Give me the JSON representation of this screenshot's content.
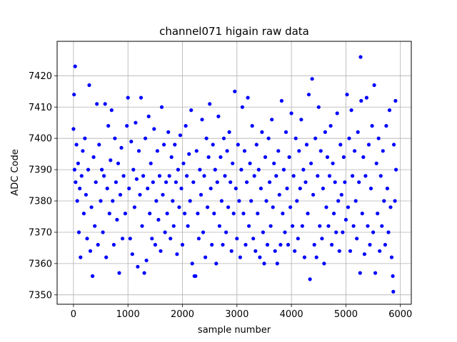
{
  "chart_data": {
    "type": "scatter",
    "title": "channel071 higain raw data",
    "xlabel": "sample number",
    "ylabel": "ADC Code",
    "xlim": [
      -300,
      6200
    ],
    "ylim": [
      7347,
      7431
    ],
    "xticks": [
      0,
      1000,
      2000,
      3000,
      4000,
      5000,
      6000
    ],
    "yticks": [
      7350,
      7360,
      7370,
      7380,
      7390,
      7400,
      7410,
      7420
    ],
    "grid": true,
    "marker_color": "#0000ff",
    "series": [
      {
        "points": [
          [
            0,
            7403
          ],
          [
            10,
            7414
          ],
          [
            20,
            7390
          ],
          [
            30,
            7423
          ],
          [
            40,
            7386
          ],
          [
            55,
            7398
          ],
          [
            70,
            7380
          ],
          [
            85,
            7392
          ],
          [
            100,
            7370
          ],
          [
            115,
            7384
          ],
          [
            130,
            7362
          ],
          [
            150,
            7388
          ],
          [
            170,
            7396
          ],
          [
            190,
            7376
          ],
          [
            210,
            7400
          ],
          [
            230,
            7382
          ],
          [
            250,
            7368
          ],
          [
            270,
            7390
          ],
          [
            290,
            7417
          ],
          [
            310,
            7364
          ],
          [
            330,
            7378
          ],
          [
            350,
            7356
          ],
          [
            370,
            7394
          ],
          [
            390,
            7372
          ],
          [
            410,
            7386
          ],
          [
            430,
            7411
          ],
          [
            450,
            7366
          ],
          [
            470,
            7398
          ],
          [
            500,
            7380
          ],
          [
            520,
            7390
          ],
          [
            540,
            7370
          ],
          [
            560,
            7388
          ],
          [
            580,
            7411
          ],
          [
            600,
            7362
          ],
          [
            620,
            7384
          ],
          [
            640,
            7404
          ],
          [
            660,
            7376
          ],
          [
            680,
            7393
          ],
          [
            700,
            7409
          ],
          [
            720,
            7380
          ],
          [
            740,
            7366
          ],
          [
            760,
            7400
          ],
          [
            780,
            7386
          ],
          [
            800,
            7374
          ],
          [
            820,
            7392
          ],
          [
            840,
            7357
          ],
          [
            860,
            7382
          ],
          [
            880,
            7397
          ],
          [
            900,
            7368
          ],
          [
            920,
            7388
          ],
          [
            950,
            7376
          ],
          [
            980,
            7404
          ],
          [
            1000,
            7413
          ],
          [
            1020,
            7384
          ],
          [
            1040,
            7368
          ],
          [
            1060,
            7399
          ],
          [
            1080,
            7363
          ],
          [
            1100,
            7390
          ],
          [
            1120,
            7378
          ],
          [
            1140,
            7405
          ],
          [
            1160,
            7387
          ],
          [
            1180,
            7359
          ],
          [
            1200,
            7396
          ],
          [
            1220,
            7382
          ],
          [
            1240,
            7413
          ],
          [
            1260,
            7372
          ],
          [
            1280,
            7388
          ],
          [
            1300,
            7357
          ],
          [
            1320,
            7400
          ],
          [
            1340,
            7361
          ],
          [
            1360,
            7384
          ],
          [
            1380,
            7407
          ],
          [
            1400,
            7376
          ],
          [
            1420,
            7392
          ],
          [
            1440,
            7368
          ],
          [
            1460,
            7386
          ],
          [
            1480,
            7403
          ],
          [
            1500,
            7366
          ],
          [
            1520,
            7380
          ],
          [
            1540,
            7396
          ],
          [
            1560,
            7374
          ],
          [
            1580,
            7388
          ],
          [
            1600,
            7364
          ],
          [
            1620,
            7410
          ],
          [
            1640,
            7382
          ],
          [
            1660,
            7398
          ],
          [
            1680,
            7370
          ],
          [
            1700,
            7386
          ],
          [
            1720,
            7376
          ],
          [
            1740,
            7402
          ],
          [
            1760,
            7388
          ],
          [
            1780,
            7368
          ],
          [
            1800,
            7394
          ],
          [
            1820,
            7380
          ],
          [
            1840,
            7372
          ],
          [
            1860,
            7398
          ],
          [
            1880,
            7386
          ],
          [
            1900,
            7363
          ],
          [
            1920,
            7390
          ],
          [
            1940,
            7378
          ],
          [
            1960,
            7401
          ],
          [
            1980,
            7384
          ],
          [
            2000,
            7366
          ],
          [
            2020,
            7392
          ],
          [
            2040,
            7376
          ],
          [
            2060,
            7404
          ],
          [
            2080,
            7388
          ],
          [
            2100,
            7372
          ],
          [
            2120,
            7395
          ],
          [
            2140,
            7380
          ],
          [
            2160,
            7409
          ],
          [
            2180,
            7360
          ],
          [
            2200,
            7386
          ],
          [
            2220,
            7356
          ],
          [
            2240,
            7356
          ],
          [
            2260,
            7396
          ],
          [
            2280,
            7376
          ],
          [
            2300,
            7368
          ],
          [
            2320,
            7390
          ],
          [
            2340,
            7382
          ],
          [
            2360,
            7406
          ],
          [
            2380,
            7370
          ],
          [
            2400,
            7388
          ],
          [
            2420,
            7362
          ],
          [
            2440,
            7400
          ],
          [
            2460,
            7378
          ],
          [
            2480,
            7394
          ],
          [
            2500,
            7411
          ],
          [
            2520,
            7384
          ],
          [
            2540,
            7366
          ],
          [
            2560,
            7398
          ],
          [
            2580,
            7376
          ],
          [
            2600,
            7390
          ],
          [
            2620,
            7360
          ],
          [
            2640,
            7386
          ],
          [
            2660,
            7407
          ],
          [
            2680,
            7372
          ],
          [
            2700,
            7394
          ],
          [
            2720,
            7380
          ],
          [
            2740,
            7366
          ],
          [
            2760,
            7400
          ],
          [
            2780,
            7388
          ],
          [
            2800,
            7370
          ],
          [
            2820,
            7396
          ],
          [
            2840,
            7378
          ],
          [
            2860,
            7402
          ],
          [
            2880,
            7386
          ],
          [
            2900,
            7364
          ],
          [
            2920,
            7392
          ],
          [
            2940,
            7376
          ],
          [
            2960,
            7415
          ],
          [
            2980,
            7384
          ],
          [
            3000,
            7368
          ],
          [
            3020,
            7398
          ],
          [
            3040,
            7380
          ],
          [
            3060,
            7362
          ],
          [
            3080,
            7390
          ],
          [
            3100,
            7410
          ],
          [
            3120,
            7376
          ],
          [
            3140,
            7396
          ],
          [
            3160,
            7366
          ],
          [
            3180,
            7386
          ],
          [
            3200,
            7413
          ],
          [
            3220,
            7372
          ],
          [
            3240,
            7392
          ],
          [
            3260,
            7380
          ],
          [
            3280,
            7404
          ],
          [
            3300,
            7368
          ],
          [
            3320,
            7388
          ],
          [
            3340,
            7364
          ],
          [
            3360,
            7398
          ],
          [
            3380,
            7376
          ],
          [
            3400,
            7390
          ],
          [
            3420,
            7362
          ],
          [
            3440,
            7384
          ],
          [
            3460,
            7402
          ],
          [
            3480,
            7370
          ],
          [
            3500,
            7360
          ],
          [
            3520,
            7394
          ],
          [
            3540,
            7380
          ],
          [
            3560,
            7366
          ],
          [
            3580,
            7400
          ],
          [
            3600,
            7386
          ],
          [
            3620,
            7372
          ],
          [
            3640,
            7406
          ],
          [
            3660,
            7378
          ],
          [
            3680,
            7392
          ],
          [
            3700,
            7364
          ],
          [
            3720,
            7388
          ],
          [
            3740,
            7360
          ],
          [
            3760,
            7396
          ],
          [
            3780,
            7382
          ],
          [
            3800,
            7366
          ],
          [
            3820,
            7412
          ],
          [
            3840,
            7376
          ],
          [
            3860,
            7390
          ],
          [
            3880,
            7370
          ],
          [
            3900,
            7402
          ],
          [
            3920,
            7384
          ],
          [
            3940,
            7366
          ],
          [
            3960,
            7394
          ],
          [
            3980,
            7378
          ],
          [
            4000,
            7408
          ],
          [
            4020,
            7372
          ],
          [
            4040,
            7388
          ],
          [
            4060,
            7364
          ],
          [
            4080,
            7400
          ],
          [
            4100,
            7380
          ],
          [
            4120,
            7368
          ],
          [
            4140,
            7396
          ],
          [
            4160,
            7384
          ],
          [
            4180,
            7406
          ],
          [
            4200,
            7372
          ],
          [
            4220,
            7390
          ],
          [
            4240,
            7362
          ],
          [
            4260,
            7386
          ],
          [
            4280,
            7398
          ],
          [
            4300,
            7376
          ],
          [
            4320,
            7414
          ],
          [
            4340,
            7355
          ],
          [
            4360,
            7392
          ],
          [
            4380,
            7419
          ],
          [
            4400,
            7382
          ],
          [
            4420,
            7366
          ],
          [
            4440,
            7400
          ],
          [
            4460,
            7362
          ],
          [
            4480,
            7388
          ],
          [
            4500,
            7410
          ],
          [
            4520,
            7372
          ],
          [
            4540,
            7396
          ],
          [
            4560,
            7368
          ],
          [
            4580,
            7384
          ],
          [
            4600,
            7360
          ],
          [
            4620,
            7402
          ],
          [
            4640,
            7378
          ],
          [
            4660,
            7394
          ],
          [
            4680,
            7372
          ],
          [
            4700,
            7388
          ],
          [
            4720,
            7404
          ],
          [
            4740,
            7366
          ],
          [
            4760,
            7392
          ],
          [
            4780,
            7376
          ],
          [
            4800,
            7386
          ],
          [
            4820,
            7370
          ],
          [
            4840,
            7408
          ],
          [
            4860,
            7380
          ],
          [
            4880,
            7364
          ],
          [
            4900,
            7398
          ],
          [
            4920,
            7382
          ],
          [
            4940,
            7370
          ],
          [
            4960,
            7394
          ],
          [
            4980,
            7386
          ],
          [
            5000,
            7374
          ],
          [
            5020,
            7414
          ],
          [
            5040,
            7378
          ],
          [
            5060,
            7400
          ],
          [
            5080,
            7364
          ],
          [
            5100,
            7409
          ],
          [
            5120,
            7388
          ],
          [
            5140,
            7372
          ],
          [
            5160,
            7396
          ],
          [
            5180,
            7380
          ],
          [
            5200,
            7368
          ],
          [
            5220,
            7402
          ],
          [
            5240,
            7386
          ],
          [
            5260,
            7357
          ],
          [
            5270,
            7426
          ],
          [
            5280,
            7412
          ],
          [
            5300,
            7376
          ],
          [
            5320,
            7394
          ],
          [
            5340,
            7363
          ],
          [
            5360,
            7388
          ],
          [
            5380,
            7413
          ],
          [
            5400,
            7372
          ],
          [
            5420,
            7398
          ],
          [
            5440,
            7366
          ],
          [
            5460,
            7384
          ],
          [
            5480,
            7404
          ],
          [
            5500,
            7370
          ],
          [
            5520,
            7417
          ],
          [
            5540,
            7357
          ],
          [
            5560,
            7392
          ],
          [
            5580,
            7376
          ],
          [
            5600,
            7400
          ],
          [
            5620,
            7364
          ],
          [
            5640,
            7388
          ],
          [
            5660,
            7372
          ],
          [
            5680,
            7396
          ],
          [
            5700,
            7380
          ],
          [
            5720,
            7366
          ],
          [
            5740,
            7404
          ],
          [
            5760,
            7384
          ],
          [
            5780,
            7370
          ],
          [
            5800,
            7409
          ],
          [
            5820,
            7378
          ],
          [
            5840,
            7362
          ],
          [
            5860,
            7356
          ],
          [
            5870,
            7351
          ],
          [
            5880,
            7398
          ],
          [
            5900,
            7380
          ],
          [
            5910,
            7412
          ],
          [
            5920,
            7390
          ]
        ]
      }
    ]
  }
}
